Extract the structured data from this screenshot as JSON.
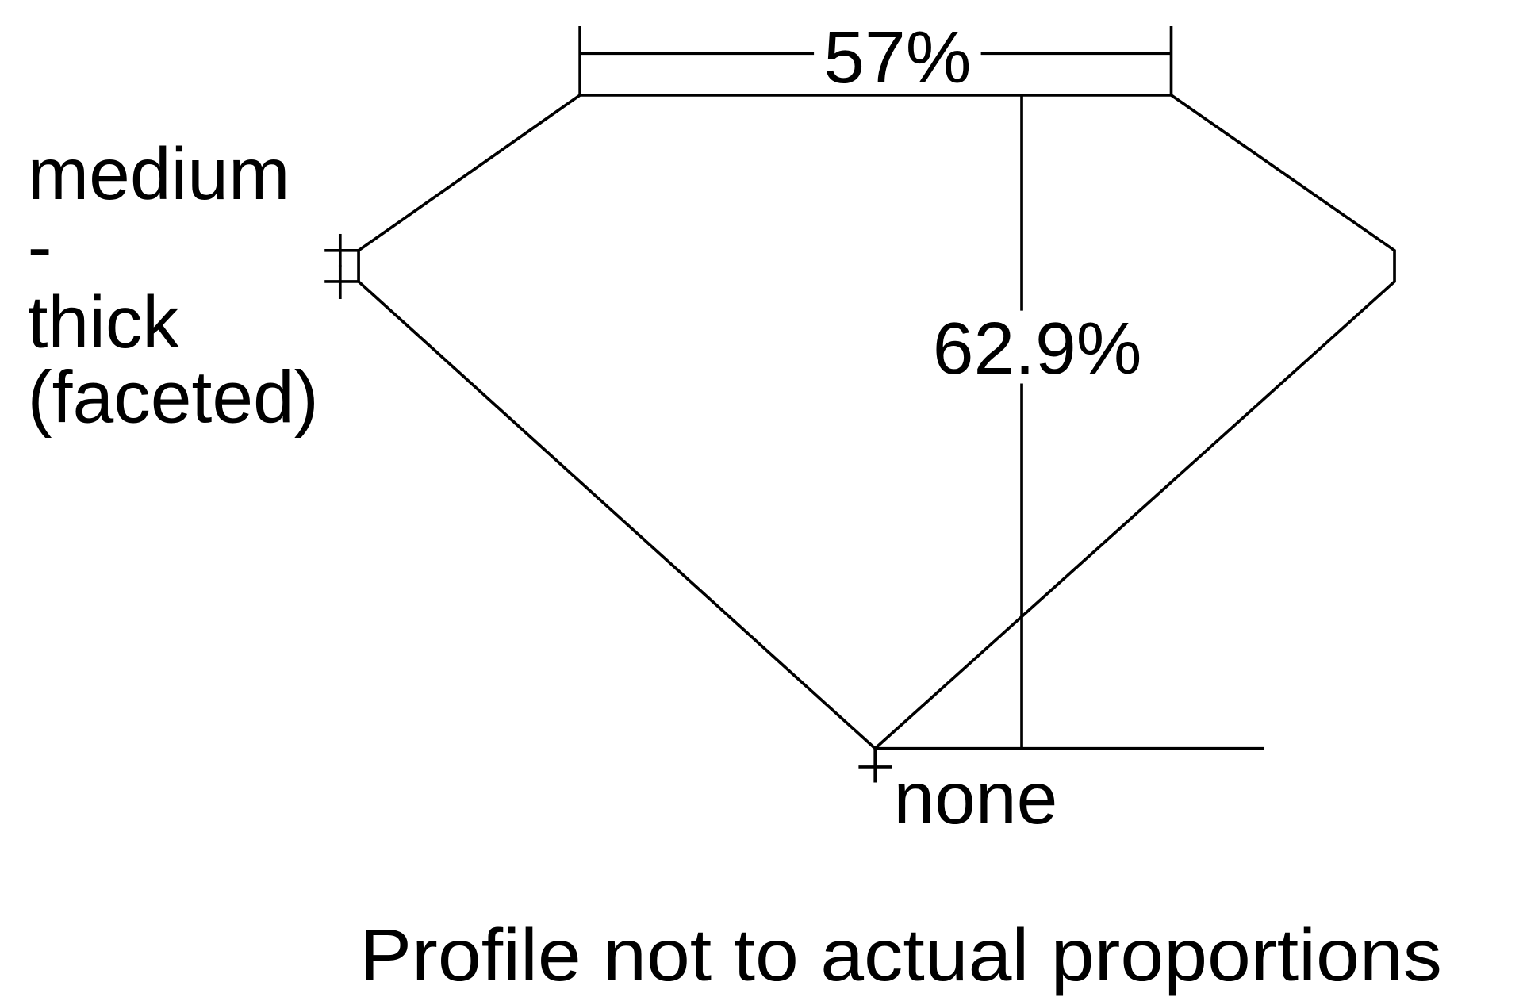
{
  "diagram": {
    "table_percent": "57%",
    "depth_percent": "62.9%",
    "girdle_label": [
      "medium",
      "-",
      "thick",
      "(faceted)"
    ],
    "culet_label": "none",
    "footnote": "Profile not to actual proportions",
    "line_color": "#000000",
    "background_color": "#ffffff"
  }
}
